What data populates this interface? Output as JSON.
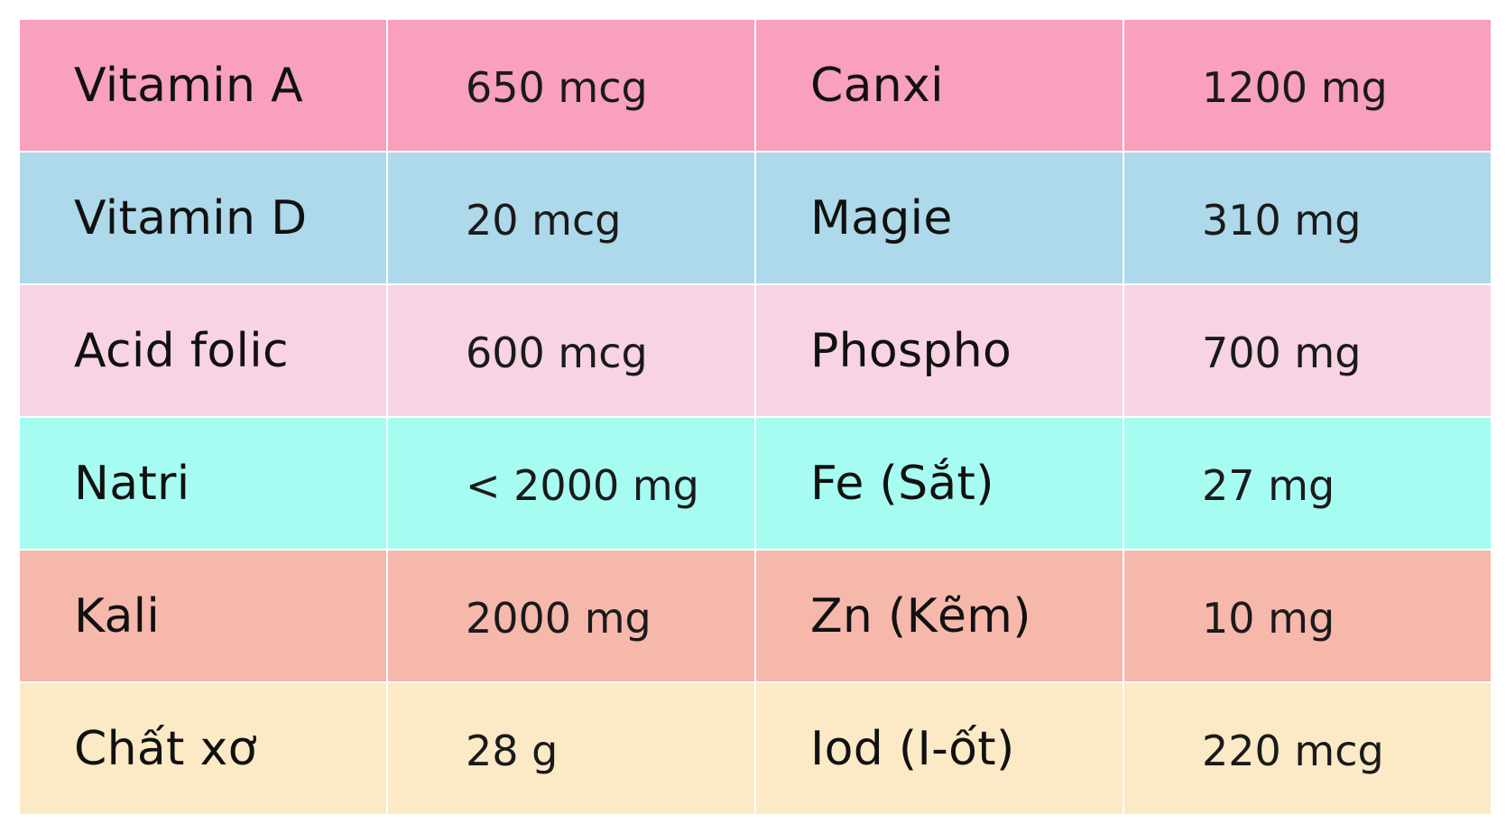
{
  "colors": {
    "row_backgrounds": [
      "#f8a0bc",
      "#add9ea",
      "#f8d3e3",
      "#a6fcf1",
      "#f6b8ab",
      "#fce9c6"
    ],
    "text": "#111111",
    "grid_lines": "#ffffff"
  },
  "rows": [
    {
      "name_left": "Vitamin A",
      "value_left": "650 mcg",
      "name_right": "Canxi",
      "value_right": "1200 mg"
    },
    {
      "name_left": "Vitamin D",
      "value_left": "20 mcg",
      "name_right": "Magie",
      "value_right": "310 mg"
    },
    {
      "name_left": "Acid folic",
      "value_left": "600 mcg",
      "name_right": "Phospho",
      "value_right": "700 mg"
    },
    {
      "name_left": "Natri",
      "value_left": "< 2000 mg",
      "name_right": "Fe (Sắt)",
      "value_right": "27 mg"
    },
    {
      "name_left": "Kali",
      "value_left": "2000 mg",
      "name_right": "Zn (Kẽm)",
      "value_right": "10 mg"
    },
    {
      "name_left": "Chất xơ",
      "value_left": "28 g",
      "name_right": "Iod (I-ốt)",
      "value_right": "220 mcg"
    }
  ]
}
